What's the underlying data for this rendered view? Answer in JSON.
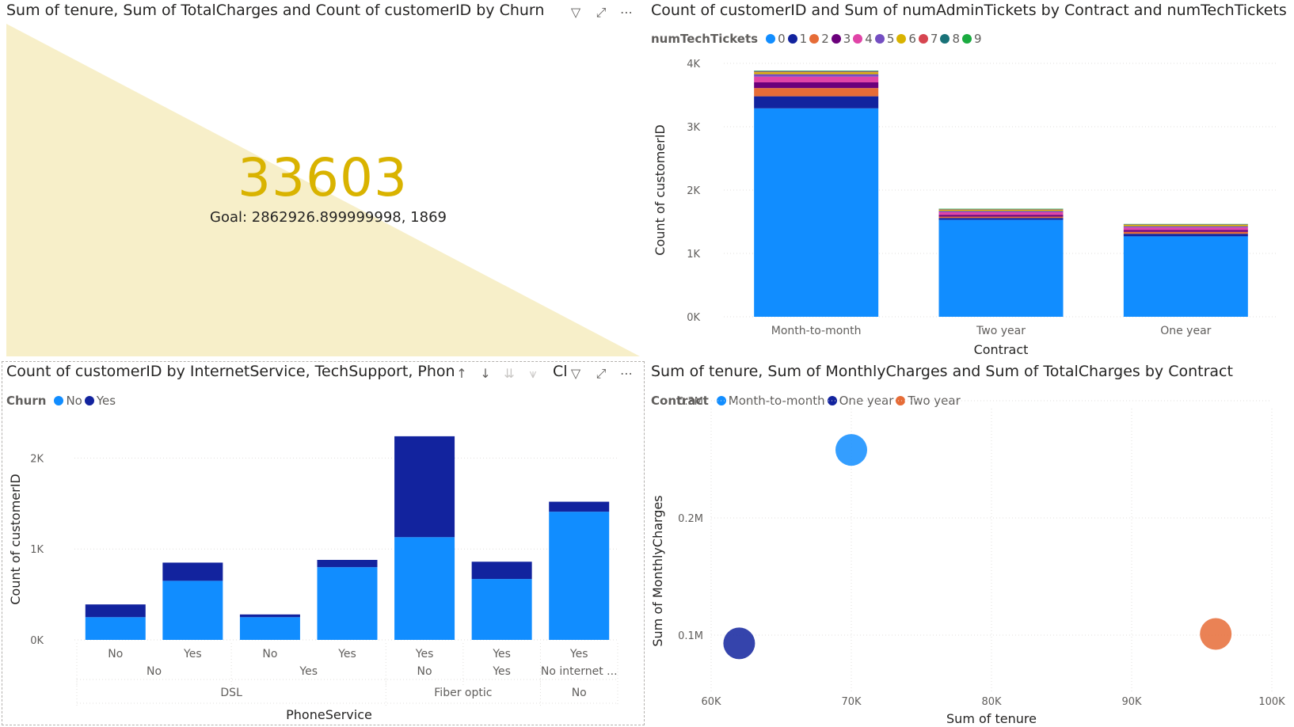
{
  "kpi": {
    "title": "Sum of tenure, Sum of TotalCharges and Count of customerID by Churn",
    "value": "33603",
    "goal": "Goal: 2862926.899999998, 1869",
    "colors": {
      "value": "#d9b300",
      "band": "#f7efc9"
    }
  },
  "contract_chart": {
    "title": "Count of customerID and Sum of numAdminTickets by Contract and numTechTickets",
    "legend_title": "numTechTickets"
  },
  "internet_chart": {
    "title": "Count of customerID by InternetService, TechSupport, Phon",
    "title_tail": "Cl",
    "legend_title": "Churn"
  },
  "scatter_chart": {
    "title": "Sum of tenure, Sum of MonthlyCharges and Sum of TotalCharges by Contract",
    "legend_title": "Contract"
  },
  "chart_data": [
    {
      "type": "bar",
      "stacked": true,
      "categories": [
        "Month-to-month",
        "Two year",
        "One year"
      ],
      "xlabel": "Contract",
      "ylabel": "Count of customerID",
      "ylim": [
        0,
        4000
      ],
      "yticks": [
        "0K",
        "1K",
        "2K",
        "3K",
        "4K"
      ],
      "series": [
        {
          "name": "0",
          "color": "#118dff",
          "values": [
            3290,
            1530,
            1270
          ]
        },
        {
          "name": "1",
          "color": "#12239e",
          "values": [
            190,
            30,
            40
          ]
        },
        {
          "name": "2",
          "color": "#e66c37",
          "values": [
            130,
            20,
            30
          ]
        },
        {
          "name": "3",
          "color": "#6b007b",
          "values": [
            90,
            30,
            30
          ]
        },
        {
          "name": "4",
          "color": "#e044a7",
          "values": [
            90,
            40,
            40
          ]
        },
        {
          "name": "5",
          "color": "#744ec2",
          "values": [
            40,
            20,
            20
          ]
        },
        {
          "name": "6",
          "color": "#d9b300",
          "values": [
            30,
            20,
            20
          ]
        },
        {
          "name": "7",
          "color": "#d64550",
          "values": [
            10,
            5,
            5
          ]
        },
        {
          "name": "8",
          "color": "#197278",
          "values": [
            10,
            5,
            5
          ]
        },
        {
          "name": "9",
          "color": "#1aab40",
          "values": [
            5,
            5,
            5
          ]
        }
      ]
    },
    {
      "type": "bar",
      "stacked": true,
      "categories": [
        "No",
        "Yes",
        "No",
        "Yes",
        "Yes",
        "Yes",
        "Yes"
      ],
      "level2": [
        {
          "label": "No",
          "span": 2
        },
        {
          "label": "Yes",
          "span": 2
        },
        {
          "label": "No",
          "span": 1
        },
        {
          "label": "Yes",
          "span": 1
        },
        {
          "label": "No internet ...",
          "span": 1
        }
      ],
      "level3": [
        {
          "label": "DSL",
          "span": 4
        },
        {
          "label": "Fiber optic",
          "span": 2
        },
        {
          "label": "No",
          "span": 1
        }
      ],
      "xlabel": "PhoneService",
      "ylabel": "Count of customerID",
      "ylim": [
        0,
        2300
      ],
      "yticks": [
        "0K",
        "1K",
        "2K"
      ],
      "series": [
        {
          "name": "No",
          "color": "#118dff",
          "values": [
            250,
            650,
            250,
            800,
            1130,
            670,
            1410
          ]
        },
        {
          "name": "Yes",
          "color": "#12239e",
          "values": [
            140,
            200,
            30,
            80,
            1110,
            190,
            110
          ]
        }
      ]
    },
    {
      "type": "scatter",
      "xlabel": "Sum of tenure",
      "ylabel": "Sum of MonthlyCharges",
      "xlim": [
        60000,
        100000
      ],
      "ylim": [
        50000,
        300000
      ],
      "xticks": [
        "60K",
        "70K",
        "80K",
        "90K",
        "100K"
      ],
      "yticks": [
        "0.1M",
        "0.2M",
        "0.3M"
      ],
      "points": [
        {
          "name": "Month-to-month",
          "color": "#118dff",
          "x": 70000,
          "y": 258000
        },
        {
          "name": "One year",
          "color": "#12239e",
          "x": 62000,
          "y": 93000
        },
        {
          "name": "Two year",
          "color": "#e66c37",
          "x": 96000,
          "y": 101000
        }
      ]
    }
  ]
}
